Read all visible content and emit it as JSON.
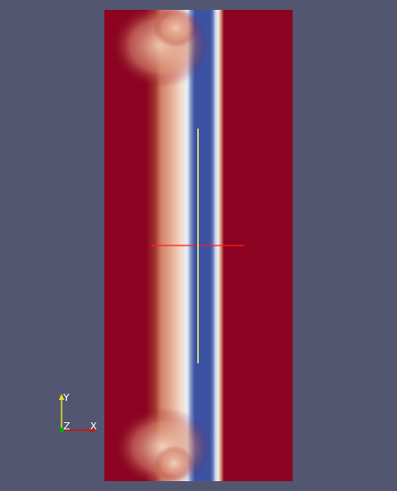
{
  "viewport": {
    "background_color": "#525670"
  },
  "render": {
    "colors": {
      "high": "#8b0320",
      "mid_high": "#e8b098",
      "mid": "#f2ece6",
      "low": "#3c52a3",
      "low_edge": "#7a92c6",
      "crosshair_horizontal": "#ff1a1a",
      "crosshair_vertical": "#ffff7a"
    }
  },
  "orientation_axes": {
    "x_label": "X",
    "y_label": "Y",
    "z_label": "Z",
    "x_color": "#d01010",
    "y_color": "#e8e020",
    "z_color": "#10a010"
  }
}
